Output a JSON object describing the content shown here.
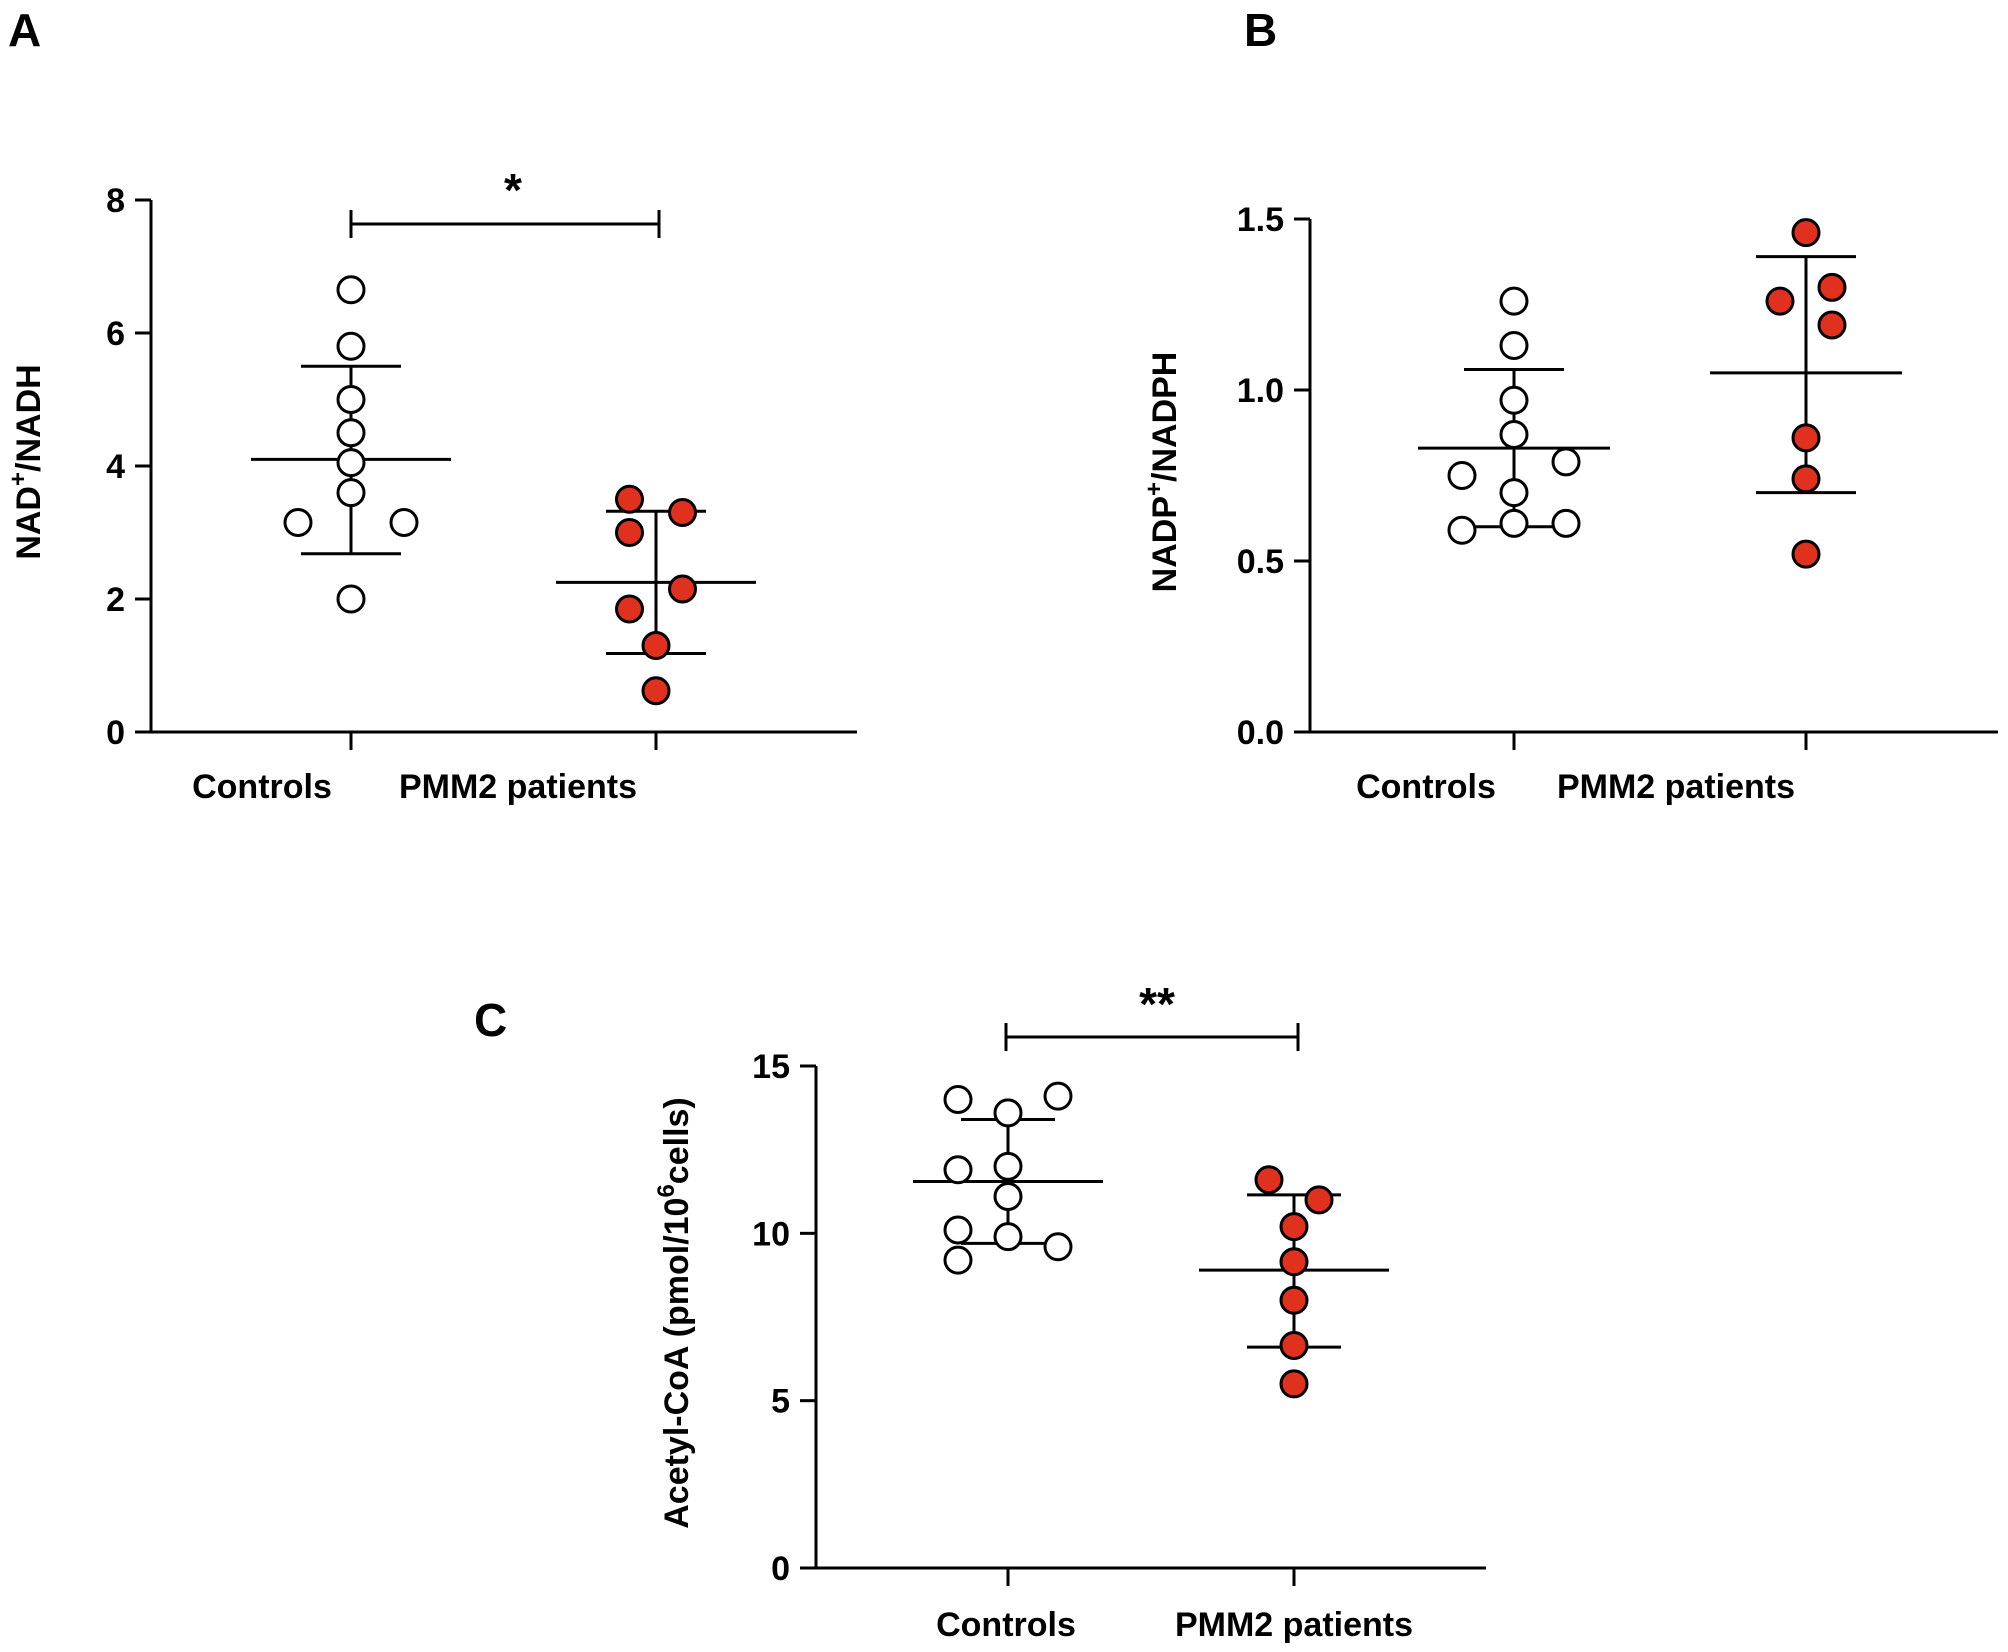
{
  "colors": {
    "patients_fill": "#e0301e",
    "controls_fill": "#ffffff",
    "stroke": "#000000"
  },
  "chart_data": [
    {
      "panel": "A",
      "type": "scatter",
      "ylabel_prefix": "NAD",
      "ylabel_sup": "+",
      "ylabel_suffix": "/NADH",
      "ylim": [
        0,
        8
      ],
      "yticks": [
        0,
        2,
        4,
        6,
        8
      ],
      "ytick_labels": [
        "0",
        "2",
        "4",
        "6",
        "8"
      ],
      "categories": [
        "Controls",
        "PMM2 patients"
      ],
      "series": [
        {
          "name": "Controls",
          "style": "open",
          "values": [
            6.65,
            5.8,
            5.0,
            4.5,
            4.05,
            3.6,
            3.15,
            3.15,
            2.0
          ],
          "jitter": [
            0,
            0,
            0,
            0,
            0,
            0,
            -1,
            1,
            0
          ],
          "mean": 4.1,
          "sd_low": 2.68,
          "sd_high": 5.5
        },
        {
          "name": "PMM2 patients",
          "style": "filled",
          "values": [
            3.5,
            3.3,
            3.0,
            2.15,
            1.85,
            1.3,
            0.62
          ],
          "jitter": [
            -0.5,
            0.5,
            -0.5,
            0.5,
            -0.5,
            0,
            0
          ],
          "mean": 2.25,
          "sd_low": 1.18,
          "sd_high": 3.32
        }
      ],
      "significance": "*"
    },
    {
      "panel": "B",
      "type": "scatter",
      "ylabel_prefix": "NADP",
      "ylabel_sup": "+",
      "ylabel_suffix": "/NADPH",
      "ylim": [
        0,
        1.5
      ],
      "yticks": [
        0,
        0.5,
        1.0,
        1.5
      ],
      "ytick_labels": [
        "0.0",
        "0.5",
        "1.0",
        "1.5"
      ],
      "categories": [
        "Controls",
        "PMM2 patients"
      ],
      "series": [
        {
          "name": "Controls",
          "style": "open",
          "values": [
            1.26,
            1.13,
            0.97,
            0.87,
            0.79,
            0.75,
            0.7,
            0.61,
            0.61,
            0.59
          ],
          "jitter": [
            0,
            0,
            0,
            0,
            1,
            -1,
            0,
            1,
            0,
            -1
          ],
          "mean": 0.83,
          "sd_low": 0.6,
          "sd_high": 1.06
        },
        {
          "name": "PMM2 patients",
          "style": "filled",
          "values": [
            1.46,
            1.3,
            1.26,
            1.19,
            0.86,
            0.74,
            0.52
          ],
          "jitter": [
            0,
            0.5,
            -0.5,
            0.5,
            0,
            0,
            0
          ],
          "mean": 1.05,
          "sd_low": 0.7,
          "sd_high": 1.39
        }
      ],
      "significance": ""
    },
    {
      "panel": "C",
      "type": "scatter",
      "ylabel_prefix": "Acetyl-CoA (pmol/10",
      "ylabel_sup": "6",
      "ylabel_suffix": "cells)",
      "ylim": [
        0,
        15
      ],
      "yticks": [
        0,
        5,
        10,
        15
      ],
      "ytick_labels": [
        "0",
        "5",
        "10",
        "15"
      ],
      "categories": [
        "Controls",
        "PMM2 patients"
      ],
      "series": [
        {
          "name": "Controls",
          "style": "open",
          "values": [
            14.1,
            14.0,
            13.6,
            12.0,
            11.9,
            11.1,
            10.1,
            9.9,
            9.6,
            9.2
          ],
          "jitter": [
            1,
            -1,
            0,
            0,
            -1,
            0,
            -1,
            0,
            1,
            -1
          ],
          "mean": 11.55,
          "sd_low": 9.7,
          "sd_high": 13.4
        },
        {
          "name": "PMM2 patients",
          "style": "filled",
          "values": [
            11.6,
            11.0,
            10.2,
            9.15,
            8.0,
            6.65,
            5.5
          ],
          "jitter": [
            -0.5,
            0.5,
            0,
            0,
            0,
            0,
            0
          ],
          "mean": 8.9,
          "sd_low": 6.6,
          "sd_high": 11.15
        }
      ],
      "significance": "**"
    }
  ]
}
